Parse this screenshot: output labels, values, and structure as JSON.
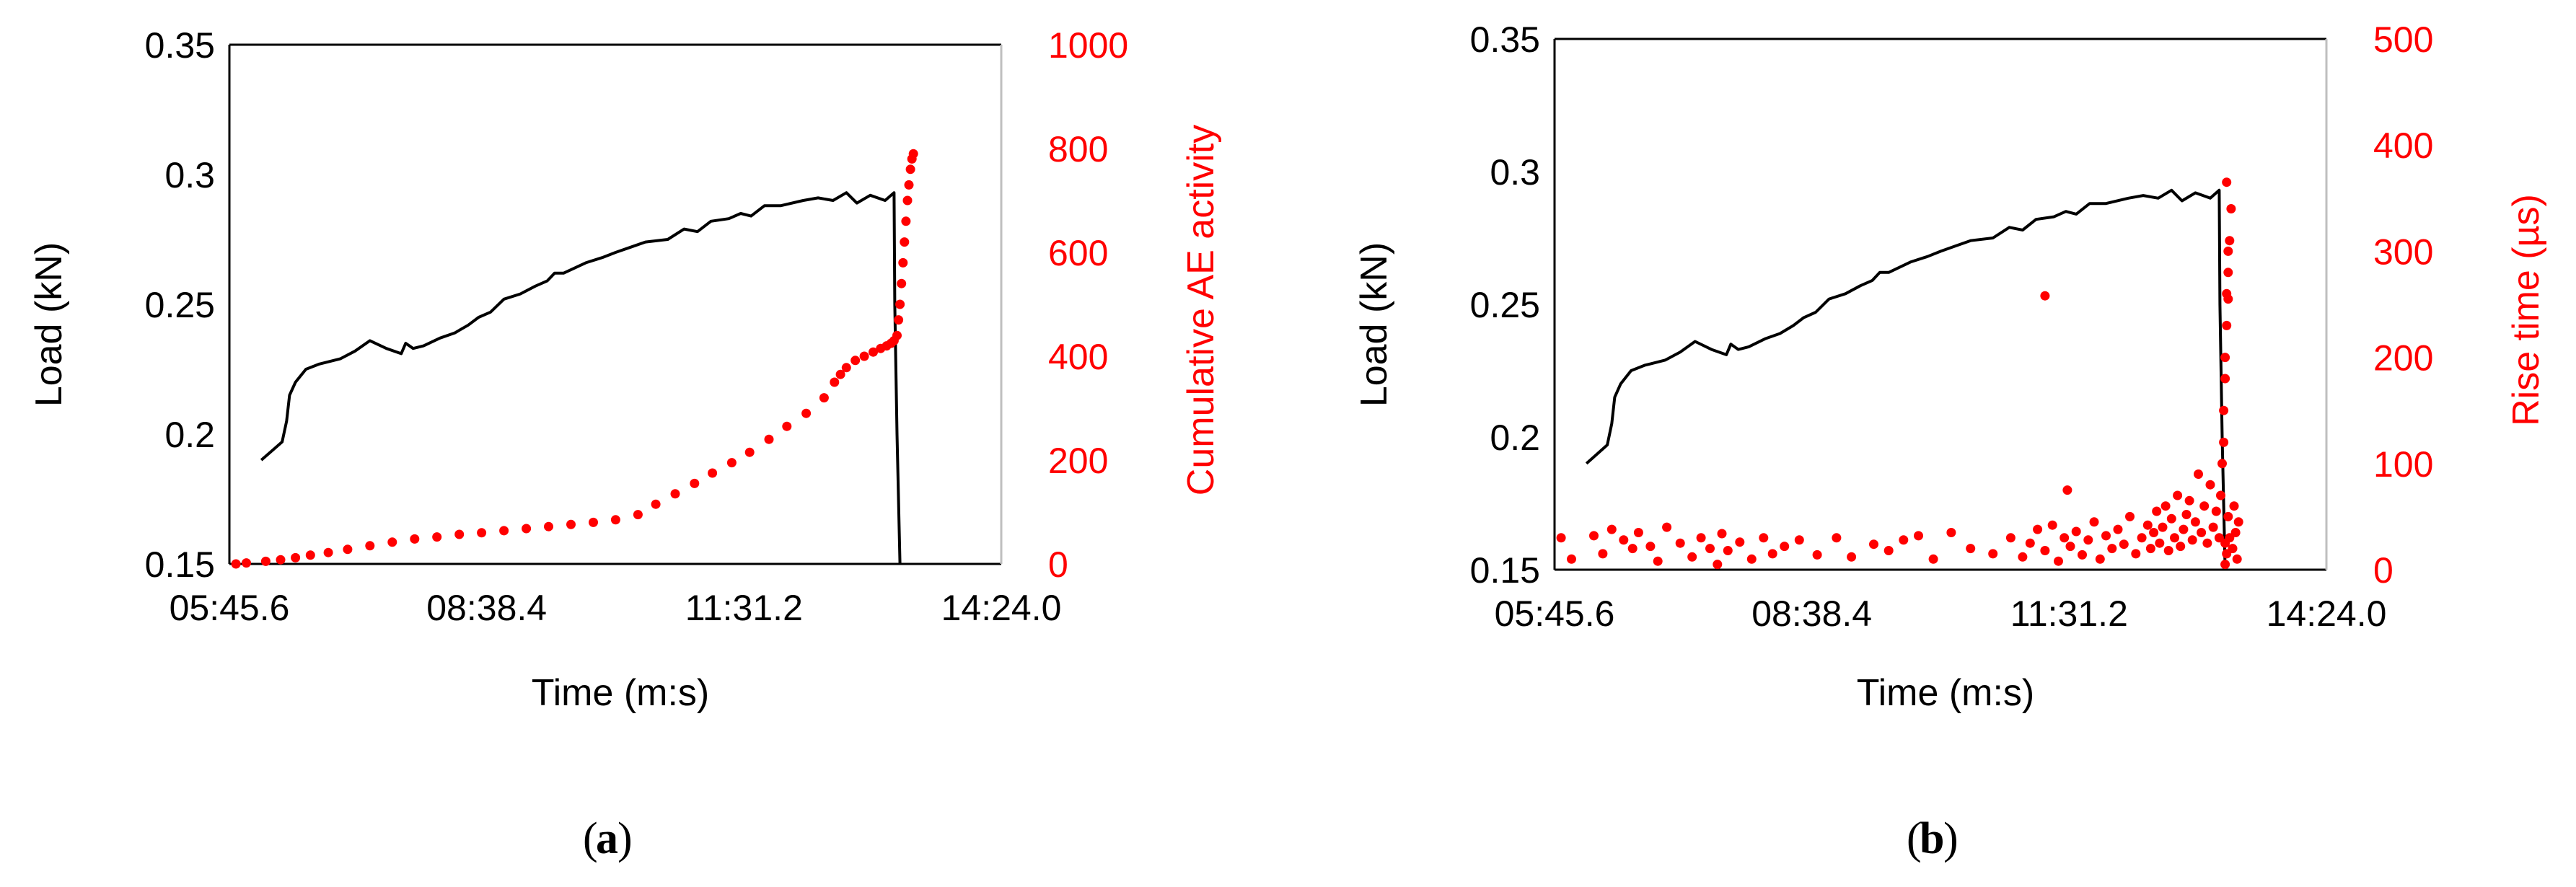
{
  "colors": {
    "load": "#000000",
    "ae": "#ff0000",
    "axis": "#000000",
    "right_axis": "#bfbfbf"
  },
  "chart_data": [
    {
      "type": "line",
      "panel_label": "a",
      "xlabel": "Time (m:s)",
      "ylabel": "Load (kN)",
      "y2label": "Cumulative AE activity",
      "x_tick_labels": [
        "05:45.6",
        "08:38.4",
        "11:31.2",
        "14:24.0"
      ],
      "x_ticks_s": [
        345.6,
        518.4,
        691.2,
        864.0
      ],
      "xlim_s": [
        345.6,
        864.0
      ],
      "ylim": [
        0.15,
        0.35
      ],
      "y_ticks": [
        0.15,
        0.2,
        0.25,
        0.3,
        0.35
      ],
      "y_tick_labels": [
        "0.15",
        "0.2",
        "0.25",
        "0.3",
        "0.35"
      ],
      "y2lim": [
        0,
        1000
      ],
      "y2_ticks": [
        0,
        200,
        400,
        600,
        800,
        1000
      ],
      "y2_tick_labels": [
        "0",
        "200",
        "400",
        "600",
        "800",
        "1000"
      ],
      "series": [
        {
          "axis": "left",
          "style": "line",
          "x_s": [
            367,
            381,
            384,
            386,
            390,
            397,
            406,
            420,
            430,
            440,
            451,
            461,
            464,
            469,
            476,
            487,
            497,
            506,
            513,
            521,
            530,
            541,
            551,
            559,
            564,
            570,
            585,
            596,
            605,
            615,
            625,
            640,
            651,
            660,
            669,
            681,
            689,
            696,
            705,
            716,
            731,
            741,
            751,
            760,
            767,
            776,
            786,
            790,
            792,
            792.5,
            794,
            796
          ],
          "y": [
            0.19,
            0.197,
            0.205,
            0.215,
            0.22,
            0.225,
            0.227,
            0.229,
            0.232,
            0.236,
            0.233,
            0.231,
            0.235,
            0.233,
            0.234,
            0.237,
            0.239,
            0.242,
            0.245,
            0.247,
            0.252,
            0.254,
            0.257,
            0.259,
            0.262,
            0.262,
            0.266,
            0.268,
            0.27,
            0.272,
            0.274,
            0.275,
            0.279,
            0.278,
            0.282,
            0.283,
            0.285,
            0.284,
            0.288,
            0.288,
            0.29,
            0.291,
            0.29,
            0.293,
            0.289,
            0.292,
            0.29,
            0.292,
            0.293,
            0.25,
            0.2,
            0.15
          ]
        },
        {
          "axis": "right",
          "style": "scatter",
          "x_s": [
            350,
            357,
            370,
            380,
            390,
            400,
            412,
            425,
            440,
            455,
            470,
            485,
            500,
            515,
            530,
            545,
            560,
            575,
            590,
            605,
            620,
            632,
            645,
            658,
            670,
            683,
            695,
            708,
            720,
            733,
            745,
            752,
            756,
            760,
            766,
            772,
            778,
            783,
            787,
            790,
            792,
            794,
            795,
            796,
            797,
            798,
            799,
            800,
            801,
            802,
            803,
            804,
            805
          ],
          "y": [
            0,
            2,
            5,
            8,
            12,
            17,
            22,
            28,
            35,
            42,
            48,
            52,
            57,
            60,
            64,
            68,
            72,
            76,
            80,
            85,
            95,
            115,
            135,
            155,
            175,
            195,
            215,
            240,
            265,
            290,
            320,
            350,
            365,
            378,
            392,
            400,
            408,
            415,
            420,
            425,
            430,
            440,
            470,
            500,
            540,
            580,
            620,
            660,
            700,
            730,
            760,
            780,
            790
          ]
        }
      ]
    },
    {
      "type": "line",
      "panel_label": "b",
      "xlabel": "Time (m:s)",
      "ylabel": "Load (kN)",
      "y2label": "Rise time (µs)",
      "x_tick_labels": [
        "05:45.6",
        "08:38.4",
        "11:31.2",
        "14:24.0"
      ],
      "x_ticks_s": [
        345.6,
        518.4,
        691.2,
        864.0
      ],
      "xlim_s": [
        345.6,
        864.0
      ],
      "ylim": [
        0.15,
        0.35
      ],
      "y_ticks": [
        0.15,
        0.2,
        0.25,
        0.3,
        0.35
      ],
      "y_tick_labels": [
        "0.15",
        "0.2",
        "0.25",
        "0.3",
        "0.35"
      ],
      "y2lim": [
        0,
        500
      ],
      "y2_ticks": [
        0,
        100,
        200,
        300,
        400,
        500
      ],
      "y2_tick_labels": [
        "0",
        "100",
        "200",
        "300",
        "400",
        "500"
      ],
      "series": [
        {
          "axis": "left",
          "style": "line",
          "x_s": [
            367,
            381,
            384,
            386,
            390,
            397,
            406,
            420,
            430,
            440,
            451,
            461,
            464,
            469,
            476,
            487,
            497,
            506,
            513,
            521,
            530,
            541,
            551,
            559,
            564,
            570,
            585,
            596,
            605,
            615,
            625,
            640,
            651,
            660,
            669,
            681,
            689,
            696,
            705,
            716,
            731,
            741,
            751,
            760,
            767,
            776,
            786,
            790,
            792,
            792.5,
            794,
            796
          ],
          "y": [
            0.19,
            0.197,
            0.205,
            0.215,
            0.22,
            0.225,
            0.227,
            0.229,
            0.232,
            0.236,
            0.233,
            0.231,
            0.235,
            0.233,
            0.234,
            0.237,
            0.239,
            0.242,
            0.245,
            0.247,
            0.252,
            0.254,
            0.257,
            0.259,
            0.262,
            0.262,
            0.266,
            0.268,
            0.27,
            0.272,
            0.274,
            0.275,
            0.279,
            0.278,
            0.282,
            0.283,
            0.285,
            0.284,
            0.288,
            0.288,
            0.29,
            0.291,
            0.29,
            0.293,
            0.289,
            0.292,
            0.29,
            0.292,
            0.293,
            0.25,
            0.2,
            0.15
          ]
        },
        {
          "axis": "right",
          "style": "scatter",
          "x_s": [
            350,
            357,
            372,
            378,
            384,
            392,
            398,
            402,
            410,
            415,
            421,
            430,
            438,
            444,
            450,
            455,
            458,
            462,
            470,
            478,
            486,
            492,
            500,
            510,
            522,
            535,
            545,
            560,
            570,
            580,
            590,
            600,
            612,
            625,
            640,
            652,
            660,
            665,
            670,
            675,
            680,
            684,
            688,
            692,
            696,
            700,
            704,
            708,
            712,
            716,
            720,
            724,
            728,
            732,
            736,
            740,
            744,
            746,
            748,
            750,
            752,
            754,
            756,
            758,
            760,
            762,
            764,
            766,
            768,
            770,
            772,
            774,
            776,
            778,
            780,
            782,
            784,
            786,
            788,
            790,
            792,
            793,
            794,
            795,
            795,
            796,
            796,
            797,
            797,
            798,
            798,
            799,
            800,
            801,
            802,
            803,
            804,
            805,
            796,
            797,
            798,
            799,
            796,
            797,
            798,
            690,
            675
          ],
          "y": [
            30,
            10,
            32,
            15,
            38,
            28,
            20,
            35,
            22,
            8,
            40,
            25,
            12,
            30,
            20,
            5,
            34,
            18,
            26,
            10,
            30,
            15,
            22,
            28,
            14,
            30,
            12,
            24,
            18,
            28,
            32,
            10,
            35,
            20,
            15,
            30,
            12,
            25,
            38,
            18,
            42,
            8,
            30,
            22,
            36,
            14,
            28,
            45,
            10,
            32,
            20,
            38,
            24,
            50,
            15,
            30,
            42,
            20,
            35,
            55,
            25,
            40,
            60,
            18,
            48,
            30,
            70,
            22,
            38,
            52,
            65,
            28,
            45,
            90,
            35,
            60,
            25,
            80,
            40,
            55,
            30,
            70,
            100,
            120,
            150,
            180,
            200,
            230,
            260,
            280,
            300,
            310,
            340,
            20,
            60,
            35,
            10,
            45,
            25,
            15,
            50,
            30,
            5,
            365,
            255,
            75,
            258
          ]
        }
      ]
    }
  ]
}
